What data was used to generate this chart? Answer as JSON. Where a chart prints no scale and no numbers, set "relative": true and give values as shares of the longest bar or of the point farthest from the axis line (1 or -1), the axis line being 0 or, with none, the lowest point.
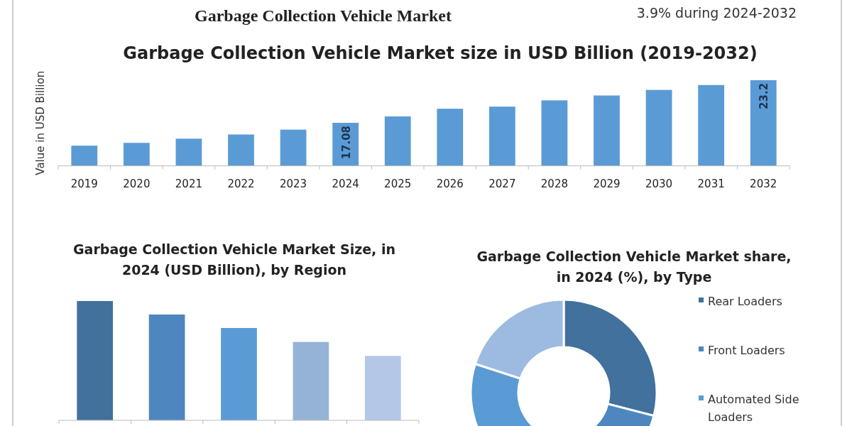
{
  "chart_data": [
    {
      "type": "bar",
      "title": "Garbage Collection Vehicle Market size in USD Billion (2019-2032)",
      "ylabel": "Value in USD Billion",
      "annotations": [
        "Garbage Collection Vehicle Market",
        "3.9% during 2024-2032"
      ],
      "categories": [
        "2019",
        "2020",
        "2021",
        "2022",
        "2023",
        "2024",
        "2025",
        "2026",
        "2027",
        "2028",
        "2029",
        "2030",
        "2031",
        "2032"
      ],
      "values": [
        13.8,
        14.2,
        14.8,
        15.4,
        16.1,
        17.08,
        18.0,
        19.1,
        19.4,
        20.3,
        21.0,
        21.8,
        22.5,
        23.2
      ],
      "value_labels": [
        null,
        null,
        null,
        null,
        null,
        "17.08",
        null,
        null,
        null,
        null,
        null,
        null,
        null,
        "23.2"
      ],
      "color": "#5b9bd5",
      "ylim": [
        10.9,
        23.2
      ],
      "tick_labels": "x"
    },
    {
      "type": "bar",
      "title": "Garbage Collection Vehicle Market  Size, in 2024 (USD Billion), by Region",
      "relative": true,
      "categories": [
        null,
        null,
        null,
        null,
        null
      ],
      "values": [
        1,
        0.887,
        0.774,
        0.657,
        0.54
      ],
      "colors": [
        "#41719c",
        "#4e86c0",
        "#5b9bd5",
        "#95b3d7",
        "#b4c7e7"
      ]
    },
    {
      "type": "donut",
      "title": "Garbage Collection Vehicle Market share, in 2024 (%), by Type",
      "legend": "right",
      "categories": [
        "Rear Loaders",
        "Front Loaders",
        "Automated Side Loaders",
        null
      ],
      "values": [
        29,
        20,
        31,
        20
      ],
      "colors": [
        "#41719c",
        "#4e86c0",
        "#5b9bd5",
        "#9dbbe0"
      ]
    }
  ]
}
